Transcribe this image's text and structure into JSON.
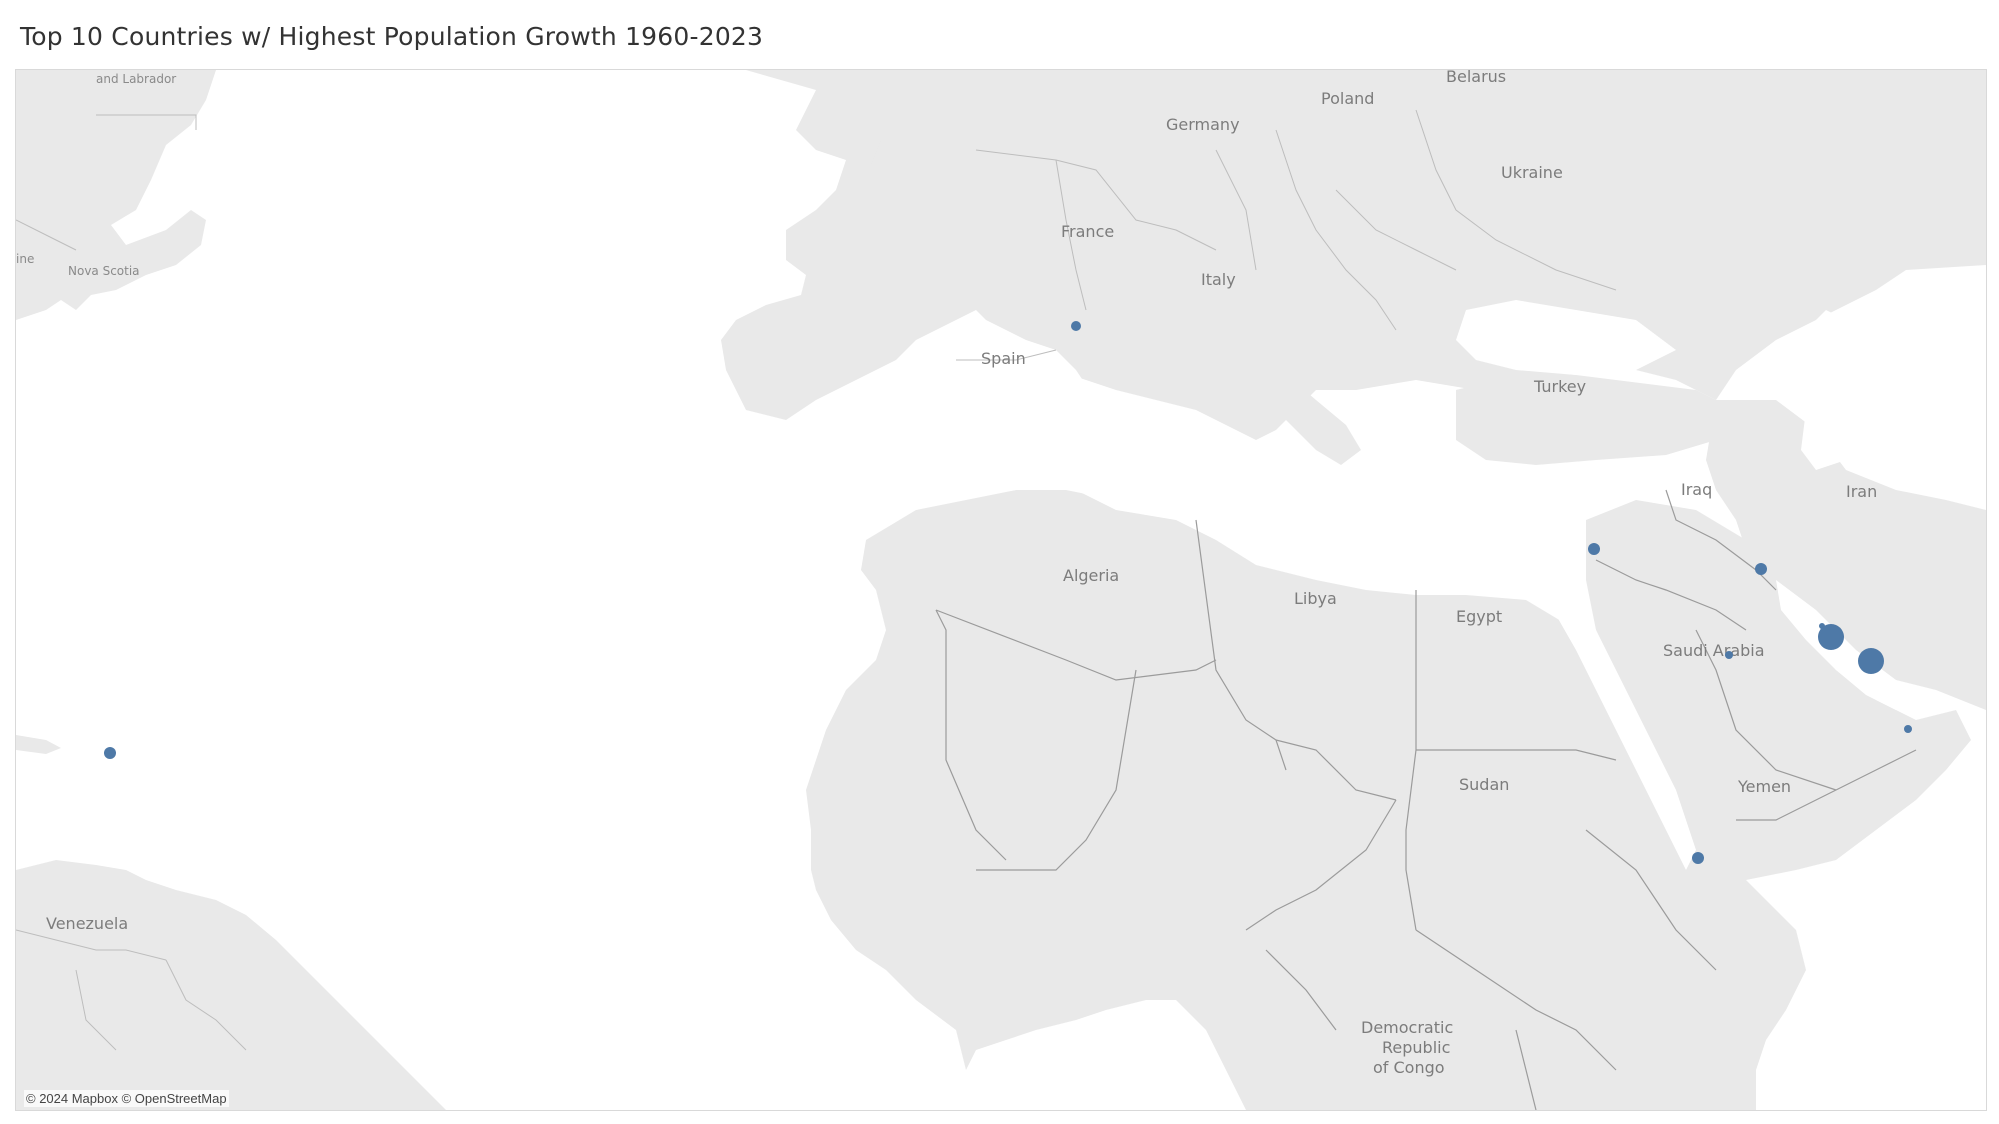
{
  "title": "Top 10 Countries w/ Highest Population Growth 1960-2023",
  "attribution": "© 2024 Mapbox © OpenStreetMap",
  "colors": {
    "marker": "#4e79a7",
    "land": "#e9e9e9",
    "water": "#ffffff",
    "border": "#9b9b9b"
  },
  "map_labels": [
    "and Labrador",
    "Nova Scotia",
    "ine",
    "Venezuela",
    "Poland",
    "Belarus",
    "Germany",
    "Ukraine",
    "France",
    "Italy",
    "Spain",
    "Turkey",
    "Iraq",
    "Iran",
    "Algeria",
    "Libya",
    "Egypt",
    "Saudi Arabia",
    "Sudan",
    "Yemen",
    "Democratic",
    "Republic",
    "of Congo"
  ],
  "markers_note": "Circle size encodes population growth; 10 marks shown",
  "markers": [
    {
      "location": "Andorra area",
      "size": "small"
    },
    {
      "location": "Caribbean (Turks and Caicos area)",
      "size": "small"
    },
    {
      "location": "Jordan",
      "size": "small"
    },
    {
      "location": "Kuwait",
      "size": "small"
    },
    {
      "location": "Bahrain",
      "size": "tiny"
    },
    {
      "location": "Qatar",
      "size": "large"
    },
    {
      "location": "United Arab Emirates",
      "size": "large"
    },
    {
      "location": "Saudi Arabia",
      "size": "tiny"
    },
    {
      "location": "Oman",
      "size": "tiny"
    },
    {
      "location": "Djibouti",
      "size": "small"
    }
  ]
}
